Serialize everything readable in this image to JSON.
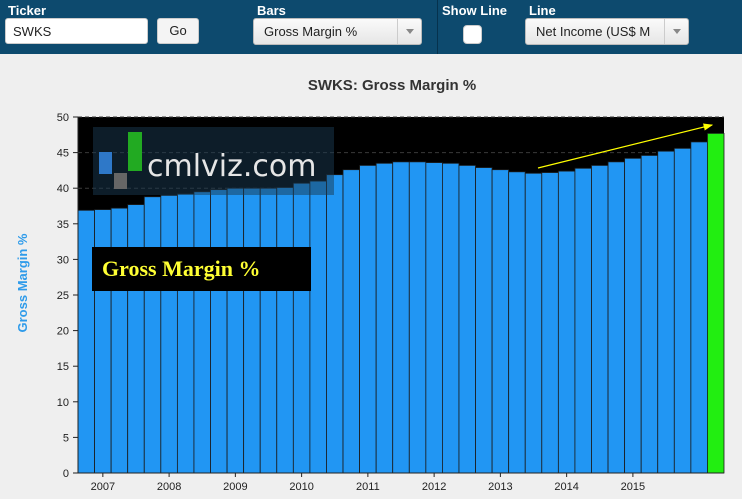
{
  "toolbar": {
    "ticker_label": "Ticker",
    "ticker_value": "SWKS",
    "go_label": "Go",
    "bars_label": "Bars",
    "bars_value": "Gross Margin %",
    "show_line_label": "Show Line",
    "line_label": "Line",
    "line_value": "Net Income (US$ M"
  },
  "watermark": {
    "text": "cmlviz.com"
  },
  "annotation": {
    "text": "Gross Margin %"
  },
  "colors": {
    "bar": "#2196f3",
    "highlight": "#22ee11",
    "plot_bg": "#000000",
    "arrow": "#ffff00"
  },
  "chart_data": {
    "type": "bar",
    "title": "SWKS: Gross Margin %",
    "ylabel": "Gross Margin %",
    "xlabel": "",
    "ylim": [
      0,
      50
    ],
    "yticks": [
      0,
      5,
      10,
      15,
      20,
      25,
      30,
      35,
      40,
      45,
      50
    ],
    "xtick_labels": [
      "2007",
      "2008",
      "2009",
      "2010",
      "2011",
      "2012",
      "2013",
      "2014",
      "2015"
    ],
    "values": [
      36.9,
      37.0,
      37.2,
      37.7,
      38.8,
      39.0,
      39.2,
      39.5,
      39.8,
      40.0,
      40.0,
      40.0,
      40.1,
      40.7,
      41.0,
      41.9,
      42.6,
      43.2,
      43.5,
      43.7,
      43.7,
      43.6,
      43.5,
      43.2,
      42.9,
      42.6,
      42.3,
      42.1,
      42.2,
      42.4,
      42.8,
      43.2,
      43.7,
      44.2,
      44.6,
      45.2,
      45.6,
      46.5,
      47.7
    ],
    "highlight_last": true,
    "grid": true,
    "legend": "none"
  }
}
